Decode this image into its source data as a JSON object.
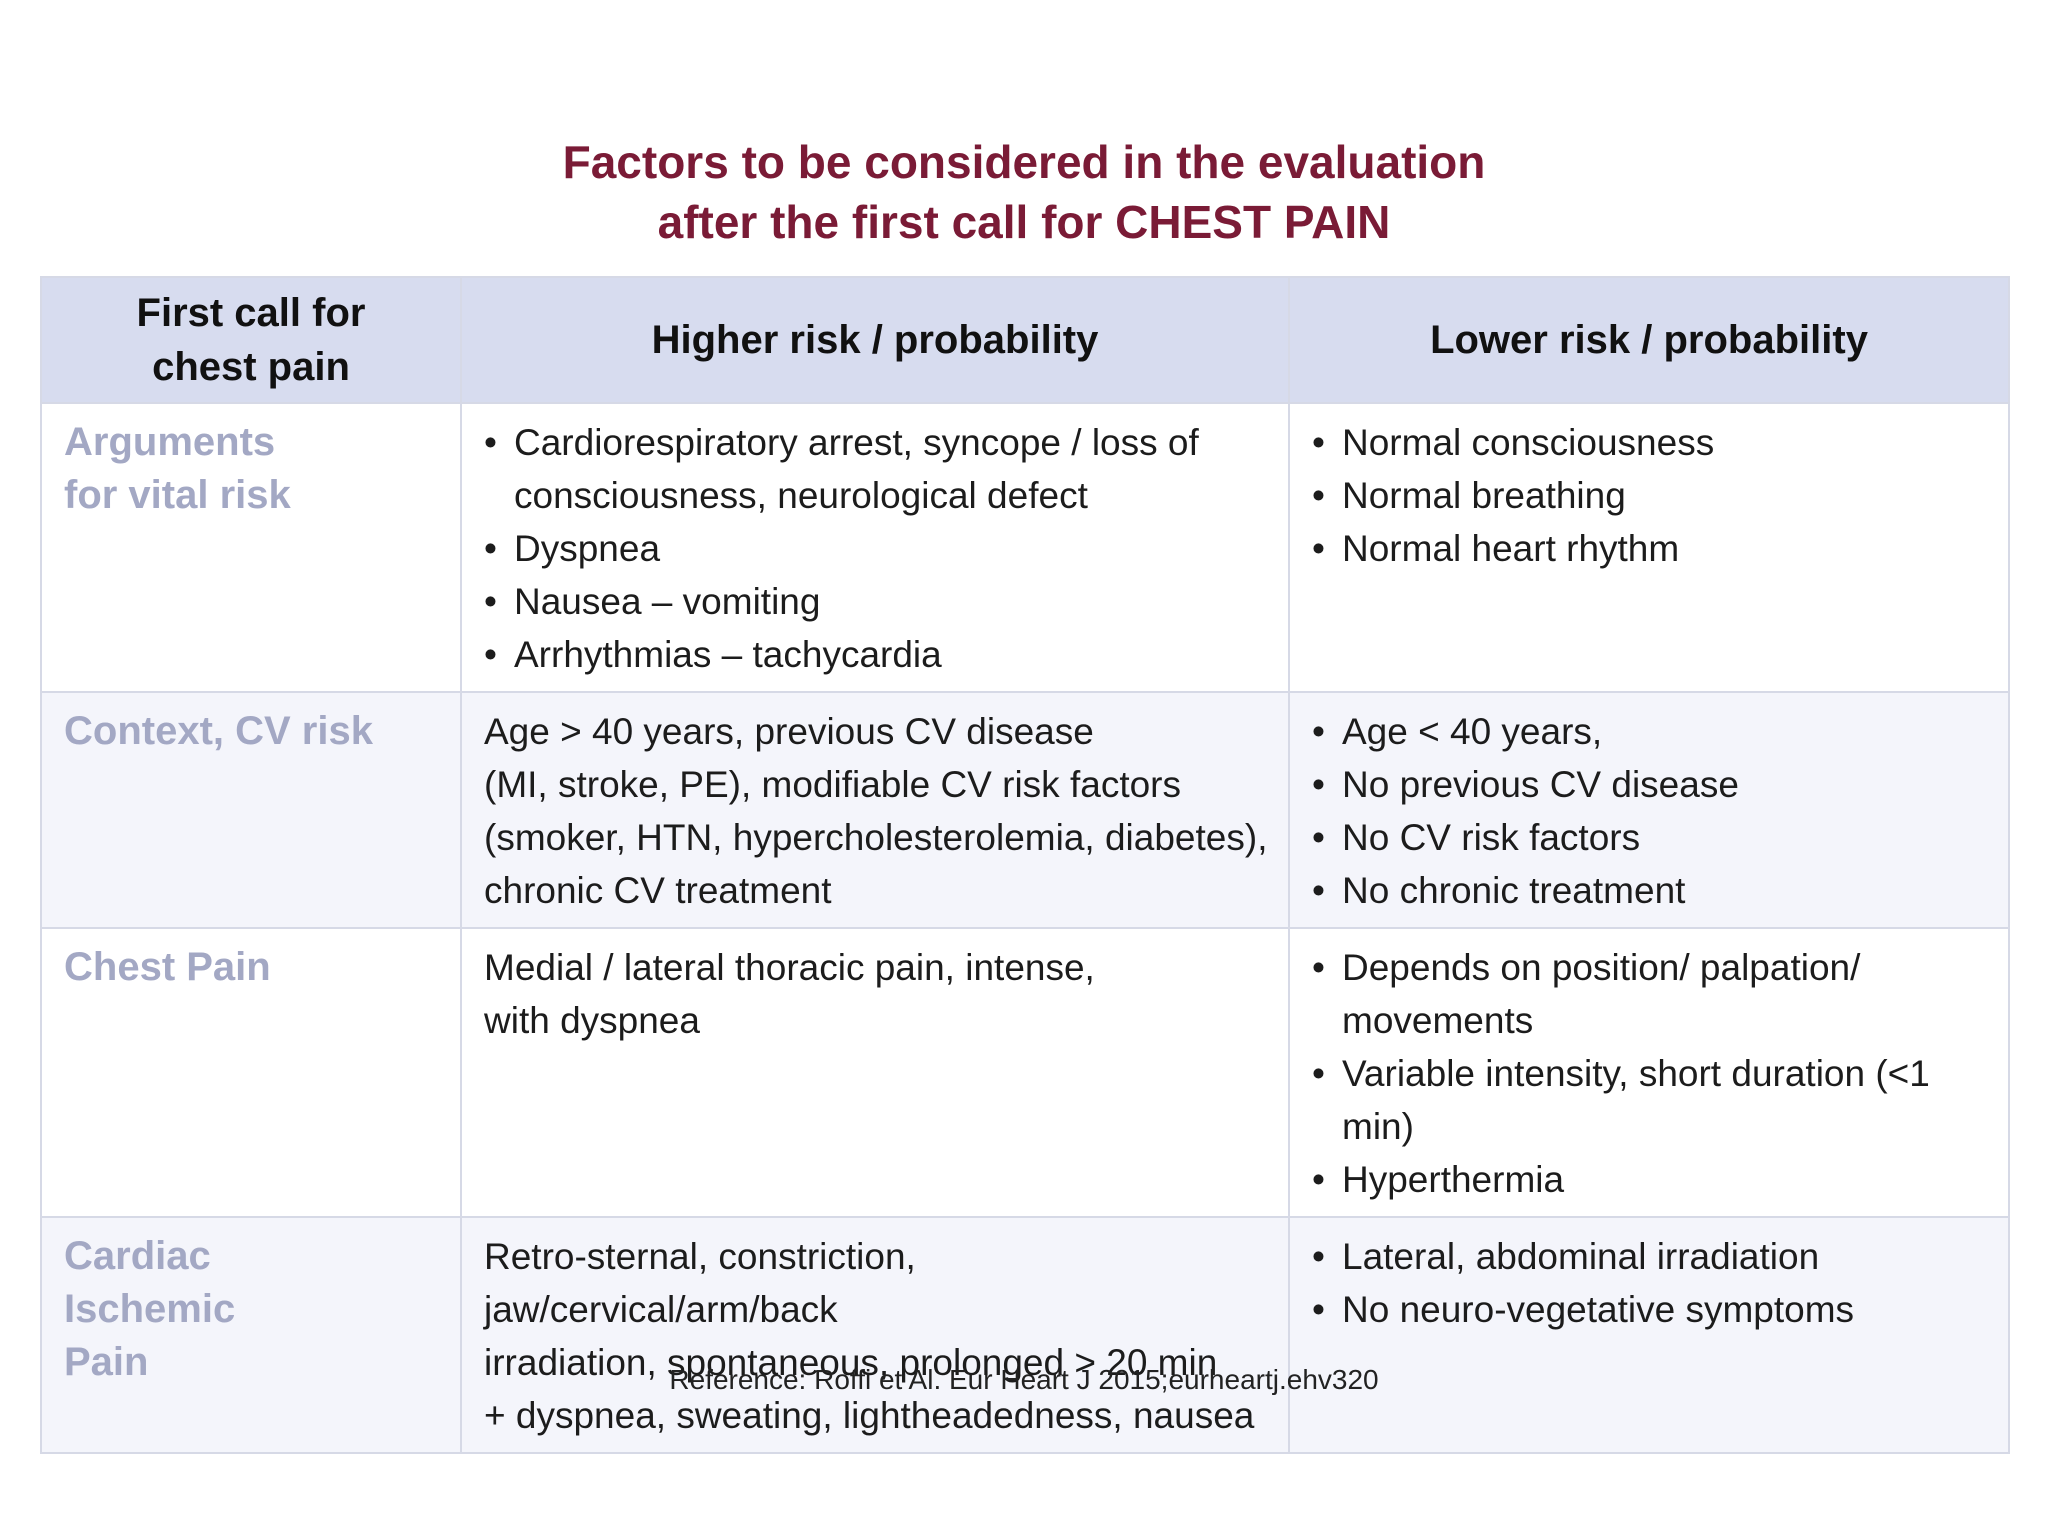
{
  "title": {
    "line1": "Factors to be considered in the evaluation",
    "line2": "after the first call for CHEST PAIN"
  },
  "table": {
    "headers": {
      "col1_line1": "First call for",
      "col1_line2": "chest pain",
      "col2": "Higher risk / probability",
      "col3": "Lower risk / probability"
    },
    "rows": [
      {
        "label_lines": [
          "Arguments",
          "for vital risk"
        ],
        "higher_items": [
          "Cardiorespiratory arrest, syncope / loss of consciousness, neurological defect",
          "Dyspnea",
          "Nausea – vomiting",
          "Arrhythmias – tachycardia"
        ],
        "lower_items": [
          "Normal consciousness",
          "Normal breathing",
          "Normal heart rhythm"
        ]
      },
      {
        "label_lines": [
          "Context, CV risk"
        ],
        "higher_lines": [
          "Age > 40 years, previous CV disease",
          "(MI, stroke, PE), modifiable CV risk factors",
          "(smoker, HTN, hypercholesterolemia, diabetes),",
          "chronic CV treatment"
        ],
        "lower_items": [
          "Age < 40 years,",
          "No previous CV disease",
          "No CV risk factors",
          "No chronic treatment"
        ]
      },
      {
        "label_lines": [
          "Chest Pain"
        ],
        "higher_lines": [
          "Medial / lateral thoracic pain, intense,",
          "with dyspnea"
        ],
        "lower_items": [
          "Depends on position/ palpation/ movements",
          "Variable intensity, short duration (<1 min)",
          "Hyperthermia"
        ]
      },
      {
        "label_lines": [
          "Cardiac",
          "Ischemic",
          "Pain"
        ],
        "higher_lines": [
          "Retro-sternal, constriction, jaw/cervical/arm/back",
          "irradiation, spontaneous, prolonged > 20 min",
          "+ dyspnea, sweating, lightheadedness, nausea"
        ],
        "lower_items": [
          "Lateral, abdominal irradiation",
          "No neuro-vegetative symptoms"
        ]
      }
    ]
  },
  "reference": "Reference: Roffi et Al. Eur Heart J 2015;eurheartj.ehv320",
  "colors": {
    "title": "#7a1b36",
    "header_bg": "#d7dcef",
    "row_label": "#a3a8c4"
  }
}
